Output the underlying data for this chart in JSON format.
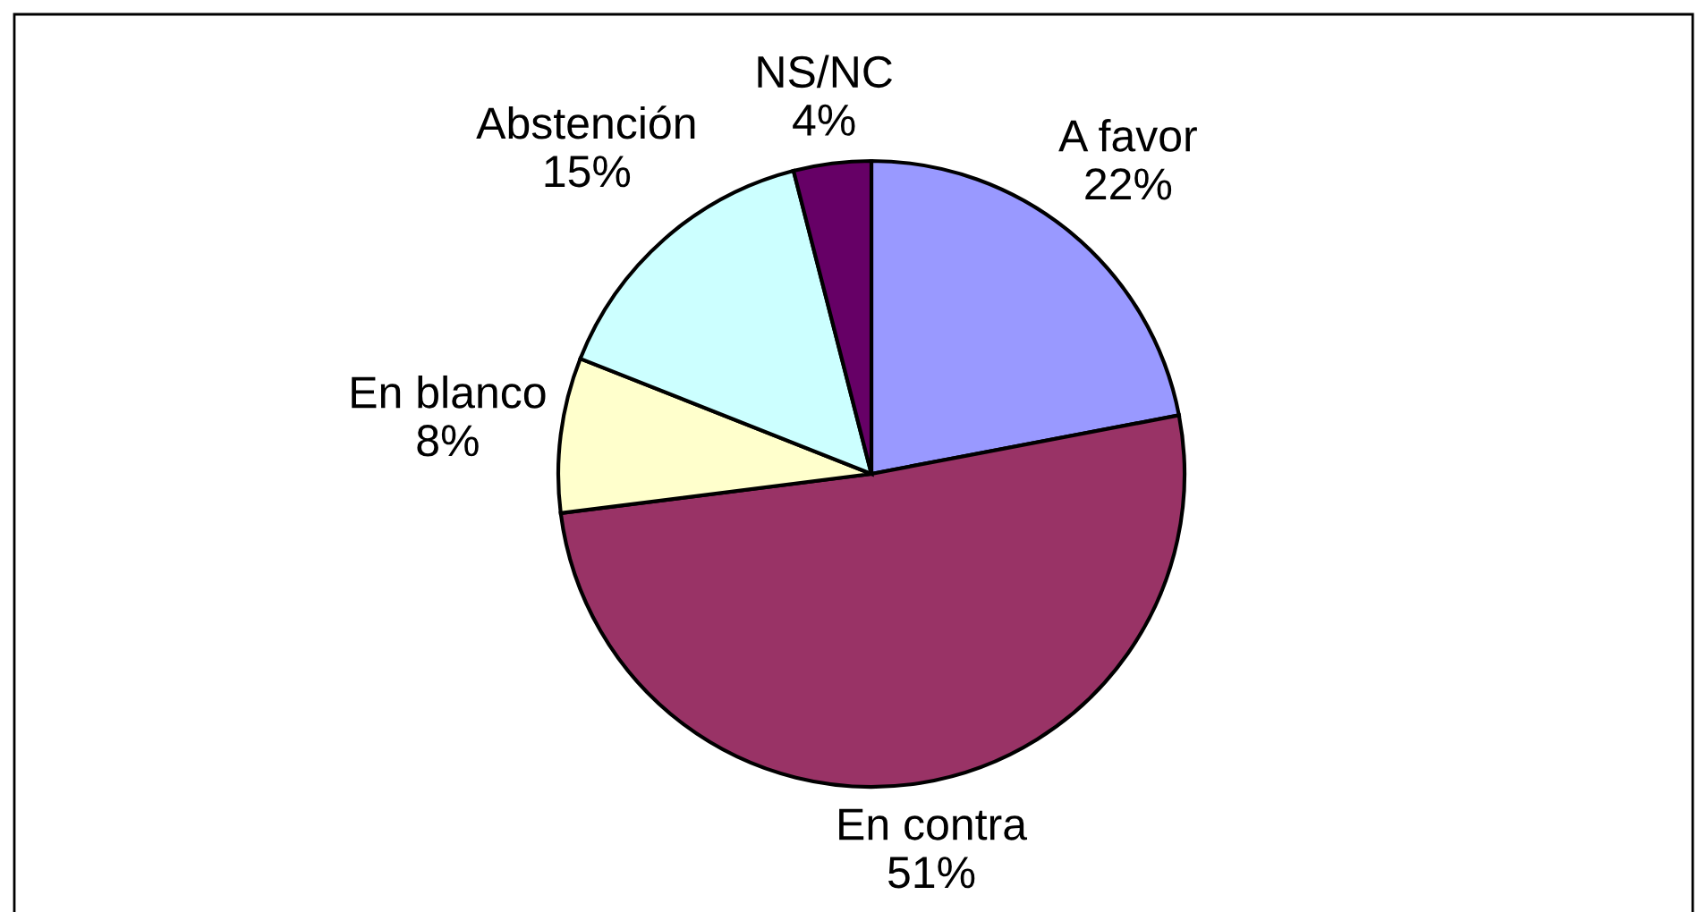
{
  "chart_data": {
    "type": "pie",
    "categories": [
      "A favor",
      "En contra",
      "En blanco",
      "Abstención",
      "NS/NC"
    ],
    "values": [
      22,
      51,
      8,
      15,
      4
    ],
    "colors": [
      "#9999ff",
      "#993366",
      "#ffffcc",
      "#ccffff",
      "#660066"
    ],
    "value_labels": [
      "22%",
      "51%",
      "8%",
      "15%",
      "4%"
    ]
  }
}
